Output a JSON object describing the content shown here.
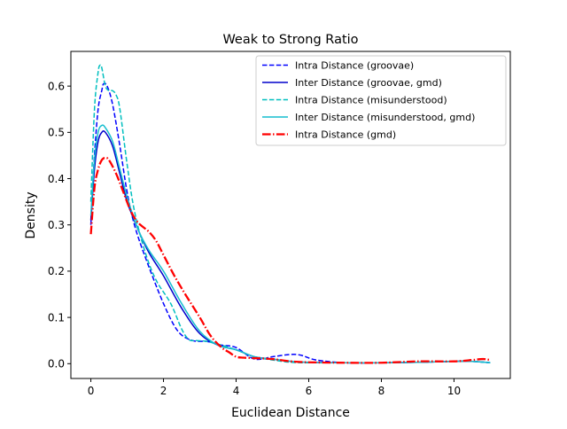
{
  "chart_data": {
    "type": "line",
    "title": "Weak to Strong Ratio",
    "xlabel": "Euclidean Distance",
    "ylabel": "Density",
    "xlim": [
      -0.55,
      11.55
    ],
    "ylim": [
      -0.032,
      0.675
    ],
    "xticks": [
      0,
      2,
      4,
      6,
      8,
      10
    ],
    "yticks": [
      0.0,
      0.1,
      0.2,
      0.3,
      0.4,
      0.5,
      0.6
    ],
    "xtick_labels": [
      "0",
      "2",
      "4",
      "6",
      "8",
      "10"
    ],
    "ytick_labels": [
      "0.0",
      "0.1",
      "0.2",
      "0.3",
      "0.4",
      "0.5",
      "0.6"
    ],
    "grid": false,
    "legend_position": "upper right",
    "series": [
      {
        "name": "Intra Distance (groovae)",
        "color": "#0000ff",
        "style": "dashed",
        "x": [
          0,
          0.1,
          0.2,
          0.3,
          0.35,
          0.45,
          0.6,
          0.8,
          1.0,
          1.2,
          1.5,
          2.0,
          2.4,
          2.8,
          3.2,
          3.6,
          4.0,
          4.5,
          5.0,
          5.5,
          5.8,
          6.2,
          7.0,
          8.0,
          9.0,
          10.0,
          10.5,
          11.0
        ],
        "y": [
          0.3,
          0.45,
          0.55,
          0.59,
          0.605,
          0.6,
          0.56,
          0.47,
          0.37,
          0.3,
          0.23,
          0.13,
          0.07,
          0.05,
          0.048,
          0.04,
          0.035,
          0.01,
          0.015,
          0.02,
          0.018,
          0.008,
          0.002,
          0.002,
          0.003,
          0.005,
          0.005,
          0.002
        ]
      },
      {
        "name": "Inter Distance (groovae, gmd)",
        "color": "#0000cc",
        "style": "solid",
        "x": [
          0,
          0.1,
          0.2,
          0.3,
          0.4,
          0.6,
          0.8,
          1.0,
          1.3,
          1.6,
          2.0,
          2.5,
          3.0,
          3.5,
          4.0,
          4.5,
          5.0,
          5.5,
          6.0,
          7.0,
          8.0,
          9.0,
          10.0,
          10.5,
          11.0
        ],
        "y": [
          0.31,
          0.42,
          0.48,
          0.5,
          0.5,
          0.47,
          0.41,
          0.35,
          0.29,
          0.24,
          0.19,
          0.12,
          0.065,
          0.04,
          0.03,
          0.015,
          0.01,
          0.005,
          0.003,
          0.002,
          0.002,
          0.003,
          0.005,
          0.005,
          0.002
        ]
      },
      {
        "name": "Intra Distance (misunderstood)",
        "color": "#00bfbf",
        "style": "dashed",
        "x": [
          0,
          0.1,
          0.2,
          0.25,
          0.3,
          0.4,
          0.5,
          0.6,
          0.7,
          0.8,
          1.0,
          1.2,
          1.5,
          1.8,
          2.2,
          2.5,
          2.7,
          2.9,
          3.2,
          3.6,
          4.0,
          4.5,
          5.0,
          5.5,
          6.0,
          7.0,
          8.0,
          9.0,
          10.0,
          10.5,
          11.0
        ],
        "y": [
          0.35,
          0.55,
          0.63,
          0.645,
          0.64,
          0.6,
          0.59,
          0.59,
          0.58,
          0.55,
          0.43,
          0.33,
          0.24,
          0.18,
          0.13,
          0.075,
          0.052,
          0.05,
          0.048,
          0.04,
          0.03,
          0.015,
          0.008,
          0.003,
          0.002,
          0.002,
          0.002,
          0.003,
          0.005,
          0.005,
          0.002
        ]
      },
      {
        "name": "Inter Distance (misunderstood, gmd)",
        "color": "#17becf",
        "style": "solid",
        "x": [
          0,
          0.1,
          0.2,
          0.3,
          0.4,
          0.6,
          0.8,
          1.0,
          1.3,
          1.6,
          2.0,
          2.5,
          3.0,
          3.5,
          4.0,
          4.5,
          5.0,
          5.5,
          6.0,
          7.0,
          8.0,
          9.0,
          10.0,
          10.5,
          11.0
        ],
        "y": [
          0.32,
          0.44,
          0.5,
          0.515,
          0.51,
          0.48,
          0.42,
          0.36,
          0.29,
          0.245,
          0.2,
          0.13,
          0.07,
          0.04,
          0.03,
          0.015,
          0.01,
          0.005,
          0.003,
          0.002,
          0.002,
          0.003,
          0.005,
          0.005,
          0.002
        ]
      },
      {
        "name": "Intra Distance (gmd)",
        "color": "#ff0000",
        "style": "dashdot",
        "x": [
          0,
          0.1,
          0.2,
          0.3,
          0.4,
          0.5,
          0.7,
          0.9,
          1.1,
          1.3,
          1.6,
          1.8,
          2.0,
          2.3,
          2.6,
          3.0,
          3.3,
          3.6,
          3.8,
          4.0,
          4.2,
          4.5,
          5.0,
          5.5,
          6.0,
          7.0,
          8.0,
          9.0,
          10.0,
          10.5,
          10.8,
          11.0
        ],
        "y": [
          0.28,
          0.38,
          0.42,
          0.44,
          0.445,
          0.44,
          0.41,
          0.37,
          0.33,
          0.305,
          0.285,
          0.265,
          0.235,
          0.19,
          0.15,
          0.1,
          0.06,
          0.035,
          0.025,
          0.015,
          0.013,
          0.012,
          0.01,
          0.005,
          0.003,
          0.002,
          0.002,
          0.005,
          0.005,
          0.008,
          0.01,
          0.008
        ]
      }
    ]
  }
}
